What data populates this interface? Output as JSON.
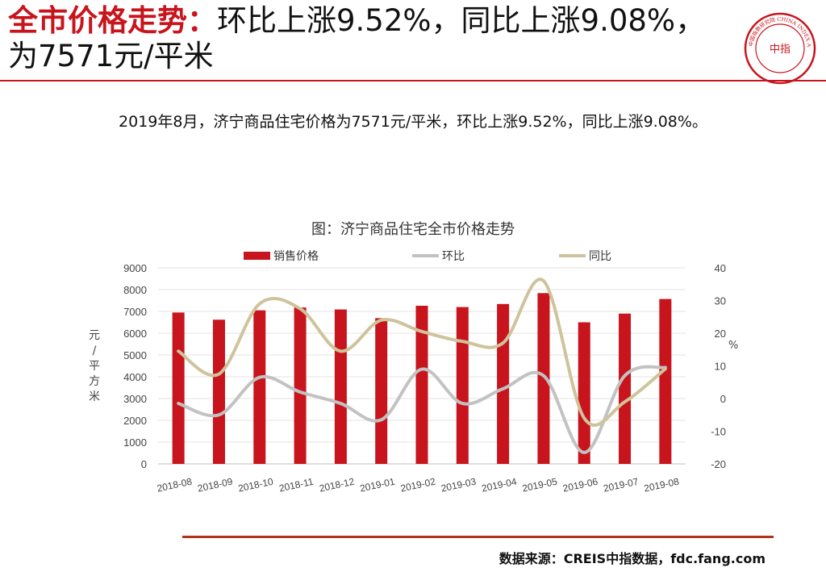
{
  "header": {
    "title_highlight": "全市价格走势：",
    "title_rest": "环比上涨9.52%，同比上涨9.08%，为7571元/平米",
    "logo_label": "中国指数研究院 CHINA INDEX ACADEMY",
    "logo_center": "中指"
  },
  "summary": "2019年8月，济宁商品住宅价格为7571元/平米，环比上涨9.52%，同比上涨9.08%。",
  "source": "数据来源：CREIS中指数据，fdc.fang.com",
  "colors": {
    "accent": "#c8141c",
    "bar": "#c8141c",
    "mom": "#c2c2c2",
    "yoy": "#cfc39b"
  },
  "chart_data": {
    "type": "bar",
    "title": "图：济宁商品住宅全市价格走势",
    "categories": [
      "2018-08",
      "2018-09",
      "2018-10",
      "2018-11",
      "2018-12",
      "2019-01",
      "2019-02",
      "2019-03",
      "2019-04",
      "2019-05",
      "2019-06",
      "2019-07",
      "2019-08"
    ],
    "ylabel": "元/平方米",
    "ylabel_right": "%",
    "ylim": [
      0,
      9000
    ],
    "ylim_right": [
      -20,
      40
    ],
    "y_ticks": [
      "0",
      "1000",
      "2000",
      "3000",
      "4000",
      "5000",
      "6000",
      "7000",
      "8000",
      "9000"
    ],
    "y_ticks_right": [
      "-20",
      "-10",
      "0",
      "10",
      "20",
      "30",
      "40"
    ],
    "legend_position": "top",
    "series": [
      {
        "name": "销售价格",
        "kind": "bar",
        "axis": "left",
        "values": [
          6950,
          6620,
          7050,
          7180,
          7090,
          6690,
          7260,
          7200,
          7340,
          7840,
          6500,
          6900,
          7571
        ]
      },
      {
        "name": "环比",
        "kind": "line",
        "axis": "right",
        "values": [
          -1.5,
          -5,
          6.5,
          2,
          -1.5,
          -6.5,
          9,
          -1.5,
          3,
          7,
          -16.5,
          7,
          9.52
        ]
      },
      {
        "name": "同比",
        "kind": "line",
        "axis": "right",
        "values": [
          14.5,
          7.5,
          29,
          27.5,
          14.5,
          24,
          20.5,
          17.5,
          17,
          36,
          -6,
          -1,
          9.08
        ]
      }
    ]
  }
}
